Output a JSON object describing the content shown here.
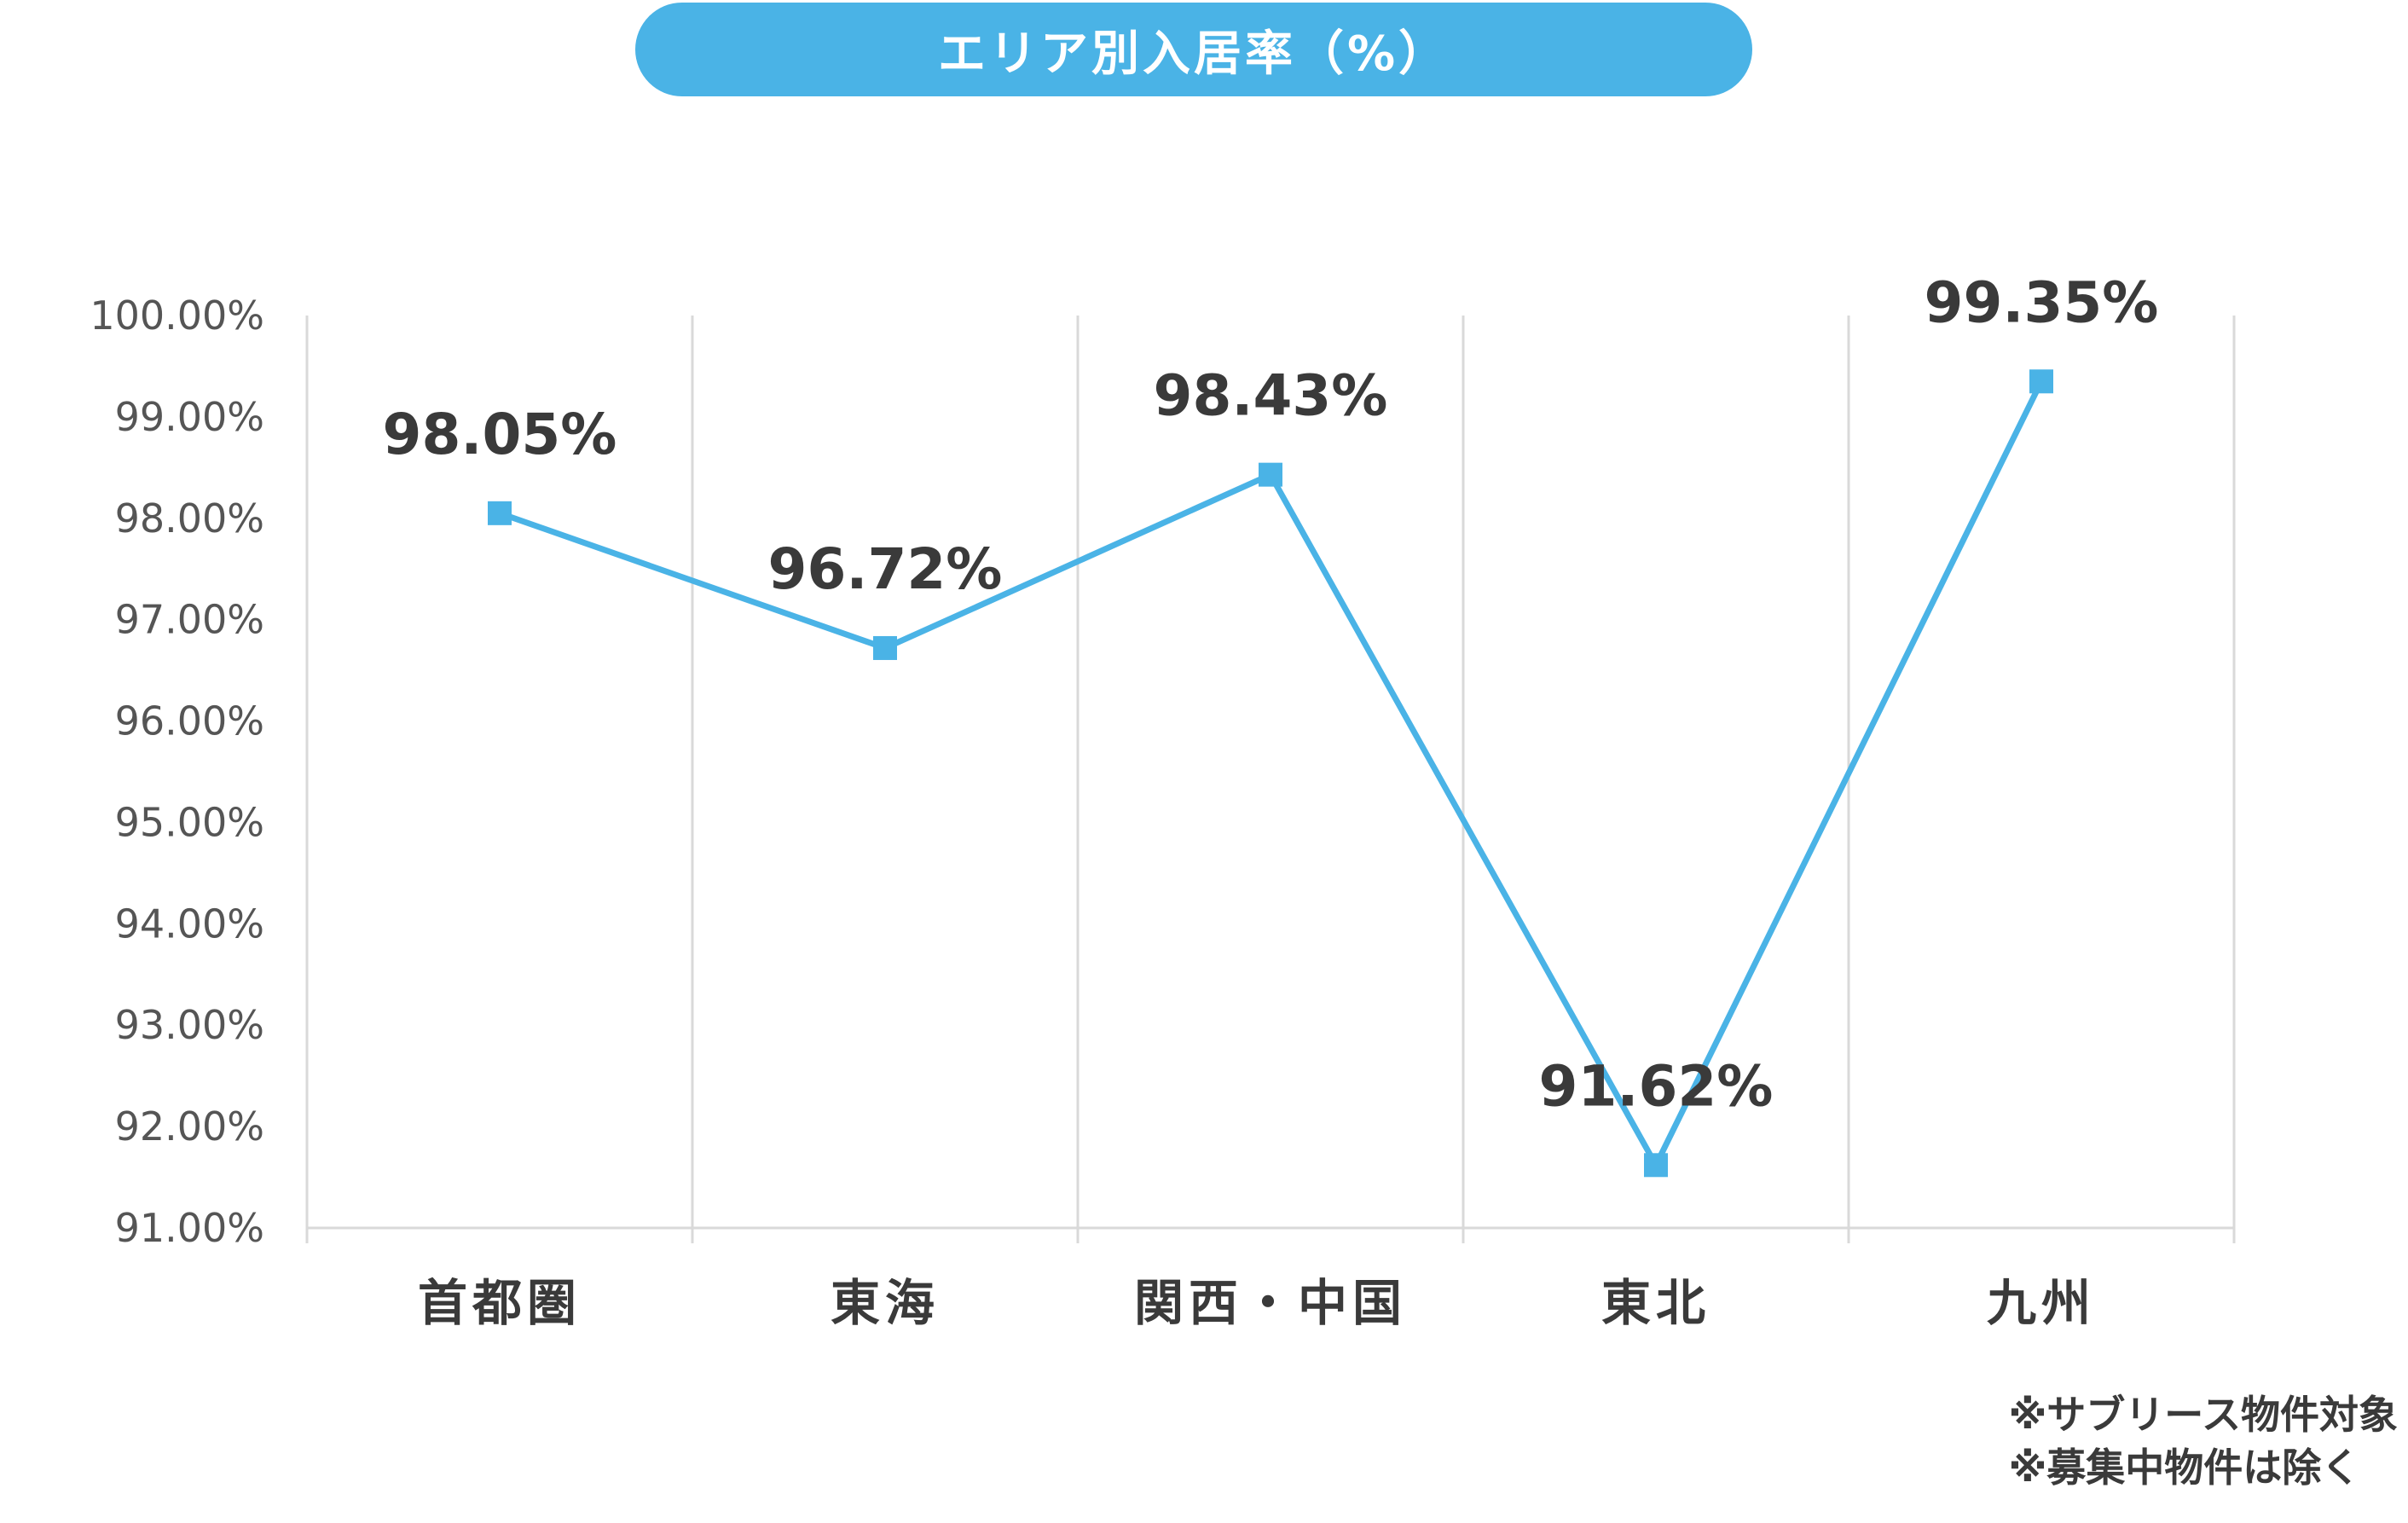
{
  "title": "エリア別入居率（%）",
  "notes": [
    "※サブリース物件対象",
    "※募集中物件は除く"
  ],
  "chart_data": {
    "type": "line",
    "categories": [
      "首都圏",
      "東海",
      "関西・中国",
      "東北",
      "九州"
    ],
    "series": [
      {
        "values": [
          98.05,
          96.72,
          98.43,
          91.62,
          99.35
        ]
      }
    ],
    "data_labels": [
      "98.05%",
      "96.72%",
      "98.43%",
      "91.62%",
      "99.35%"
    ],
    "y_ticks": [
      91,
      92,
      93,
      94,
      95,
      96,
      97,
      98,
      99,
      100
    ],
    "y_tick_labels": [
      "91.00%",
      "92.00%",
      "93.00%",
      "94.00%",
      "95.00%",
      "96.00%",
      "97.00%",
      "98.00%",
      "99.00%",
      "100.00%"
    ],
    "ylim": [
      91,
      100
    ],
    "xlabel": "",
    "ylabel": "",
    "grid": "vertical",
    "legend": "none",
    "marker": "square",
    "colors": {
      "line": "#4ab3e6",
      "title_bg": "#4ab3e6",
      "grid": "#d9d9d9",
      "text": "#3a3a3a"
    }
  }
}
